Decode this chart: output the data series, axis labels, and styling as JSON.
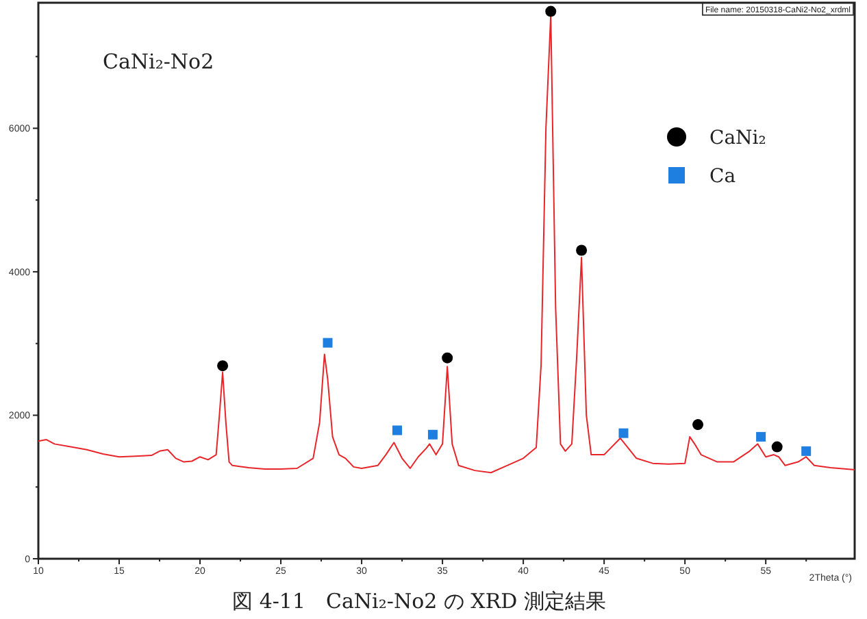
{
  "chart_data": {
    "type": "line",
    "title": "図 4-11　CaNi₂-No2 の XRD 測定結果",
    "xlabel": "2Theta (°)",
    "annotations": [
      "CaNi₂-No2",
      "File name: 20150318-CaNi2-No2_xrdml"
    ],
    "xlim": [
      10,
      60.5
    ],
    "xticks": [
      10,
      {
        "value": 12.5,
        "label": null
      },
      15,
      {
        "value": 17.5,
        "label": null
      },
      20,
      {
        "value": 22.5,
        "label": null
      },
      25,
      {
        "value": 27.5,
        "label": null
      },
      30,
      {
        "value": 32.5,
        "label": null
      },
      35,
      {
        "value": 37.5,
        "label": null
      },
      40,
      {
        "value": 42.5,
        "label": null
      },
      45,
      {
        "value": 47.5,
        "label": null
      },
      50,
      {
        "value": 52.5,
        "label": null
      },
      55,
      {
        "value": 57.5,
        "label": null
      }
    ],
    "ylim": [
      0,
      7750
    ],
    "yticks": [
      0,
      {
        "value": 1000,
        "label": null
      },
      2000,
      {
        "value": 3000,
        "label": null
      },
      4000,
      {
        "value": 5000,
        "label": null
      },
      6000,
      {
        "value": 7000,
        "label": null
      }
    ],
    "legend": "top right",
    "grid": false,
    "series": [
      {
        "color": "#e8262a",
        "x": [
          10,
          10.5,
          11,
          12,
          13,
          14,
          15,
          16,
          17,
          17.5,
          18,
          18.5,
          19,
          19.5,
          20,
          20.5,
          21,
          21.2,
          21.4,
          21.6,
          21.8,
          22,
          23,
          24,
          25,
          26,
          27,
          27.4,
          27.7,
          27.9,
          28.2,
          28.6,
          29,
          29.5,
          30,
          31,
          31.5,
          32,
          32.5,
          33,
          33.5,
          34,
          34.2,
          34.6,
          35,
          35.3,
          35.6,
          36,
          37,
          38,
          39,
          40,
          40.8,
          41.1,
          41.4,
          41.7,
          42,
          42.3,
          42.6,
          43,
          43.3,
          43.6,
          43.9,
          44.2,
          45,
          46,
          47,
          48,
          49,
          50,
          50.3,
          50.6,
          51,
          52,
          53,
          54,
          54.5,
          55,
          55.5,
          55.8,
          56.2,
          57,
          57.5,
          58,
          59,
          60,
          60.5
        ],
        "values": [
          1640,
          1660,
          1600,
          1560,
          1520,
          1460,
          1420,
          1430,
          1440,
          1500,
          1520,
          1400,
          1350,
          1360,
          1420,
          1380,
          1450,
          2000,
          2600,
          1900,
          1350,
          1300,
          1270,
          1250,
          1250,
          1260,
          1400,
          1900,
          2850,
          2500,
          1700,
          1450,
          1400,
          1280,
          1260,
          1300,
          1450,
          1620,
          1400,
          1260,
          1420,
          1540,
          1600,
          1450,
          1600,
          2680,
          1600,
          1300,
          1230,
          1200,
          1300,
          1400,
          1550,
          2700,
          6000,
          7580,
          3500,
          1600,
          1500,
          1600,
          2800,
          4200,
          2000,
          1450,
          1450,
          1680,
          1400,
          1330,
          1320,
          1330,
          1700,
          1600,
          1450,
          1350,
          1350,
          1500,
          1600,
          1420,
          1450,
          1420,
          1300,
          1350,
          1420,
          1300,
          1270,
          1250,
          1240
        ]
      },
      {
        "type": "scatter",
        "name": "CaNi₂",
        "color": "#000000",
        "marker": "circle",
        "x": [
          21.4,
          35.3,
          41.7,
          43.6,
          50.8,
          55.7
        ],
        "values": [
          2690,
          2800,
          7630,
          4300,
          1870,
          1560
        ]
      },
      {
        "type": "scatter",
        "name": "Ca",
        "color": "#1e7fe0",
        "marker": "square",
        "x": [
          27.9,
          32.2,
          34.4,
          46.2,
          54.7,
          57.5
        ],
        "values": [
          3010,
          1790,
          1730,
          1750,
          1700,
          1500
        ]
      }
    ]
  }
}
